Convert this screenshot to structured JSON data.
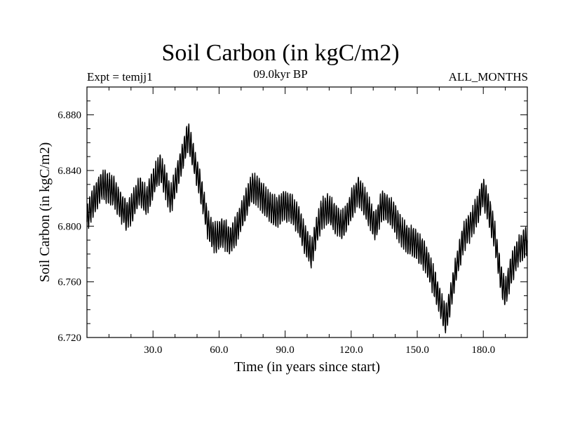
{
  "chart_data": {
    "type": "line",
    "title": "Soil Carbon (in kgC/m2)",
    "subtitle_left": "Expt = temjj1",
    "subtitle_center": "09.0kyr BP",
    "subtitle_right": "ALL_MONTHS",
    "xlabel": "Time (in years since start)",
    "ylabel": "Soil Carbon (in kgC/m2)",
    "xlim": [
      0,
      200
    ],
    "ylim": [
      6.72,
      6.9
    ],
    "x_ticks": [
      30,
      60,
      90,
      120,
      150,
      180
    ],
    "x_tick_labels": [
      "30.0",
      "60.0",
      "90.0",
      "120.0",
      "150.0",
      "180.0"
    ],
    "y_ticks": [
      6.72,
      6.76,
      6.8,
      6.84,
      6.88
    ],
    "y_tick_labels": [
      "6.720",
      "6.760",
      "6.800",
      "6.840",
      "6.880"
    ],
    "series": [
      {
        "name": "Soil Carbon",
        "color": "#000000",
        "seasonal_amplitude": 0.01,
        "x": [
          0,
          3,
          7,
          12,
          15,
          18,
          20,
          24,
          27,
          30,
          33,
          35,
          38,
          40,
          43,
          46,
          49,
          52,
          55,
          58,
          62,
          65,
          68,
          72,
          75,
          78,
          82,
          86,
          90,
          93,
          96,
          99,
          102,
          104,
          107,
          110,
          113,
          116,
          120,
          123,
          125,
          128,
          131,
          134,
          137,
          140,
          143,
          146,
          149,
          152,
          155,
          158,
          161,
          163,
          165,
          168,
          171,
          174,
          177,
          180,
          182,
          185,
          188,
          190,
          193,
          196,
          200
        ],
        "y": [
          6.805,
          6.818,
          6.83,
          6.825,
          6.815,
          6.808,
          6.812,
          6.825,
          6.818,
          6.83,
          6.842,
          6.835,
          6.818,
          6.83,
          6.848,
          6.865,
          6.845,
          6.825,
          6.8,
          6.792,
          6.795,
          6.79,
          6.798,
          6.815,
          6.828,
          6.825,
          6.815,
          6.81,
          6.815,
          6.812,
          6.805,
          6.79,
          6.78,
          6.795,
          6.81,
          6.812,
          6.805,
          6.8,
          6.815,
          6.825,
          6.822,
          6.81,
          6.8,
          6.815,
          6.812,
          6.805,
          6.795,
          6.79,
          6.788,
          6.782,
          6.772,
          6.758,
          6.742,
          6.732,
          6.748,
          6.772,
          6.792,
          6.8,
          6.81,
          6.825,
          6.815,
          6.795,
          6.762,
          6.752,
          6.77,
          6.782,
          6.79
        ]
      }
    ]
  }
}
